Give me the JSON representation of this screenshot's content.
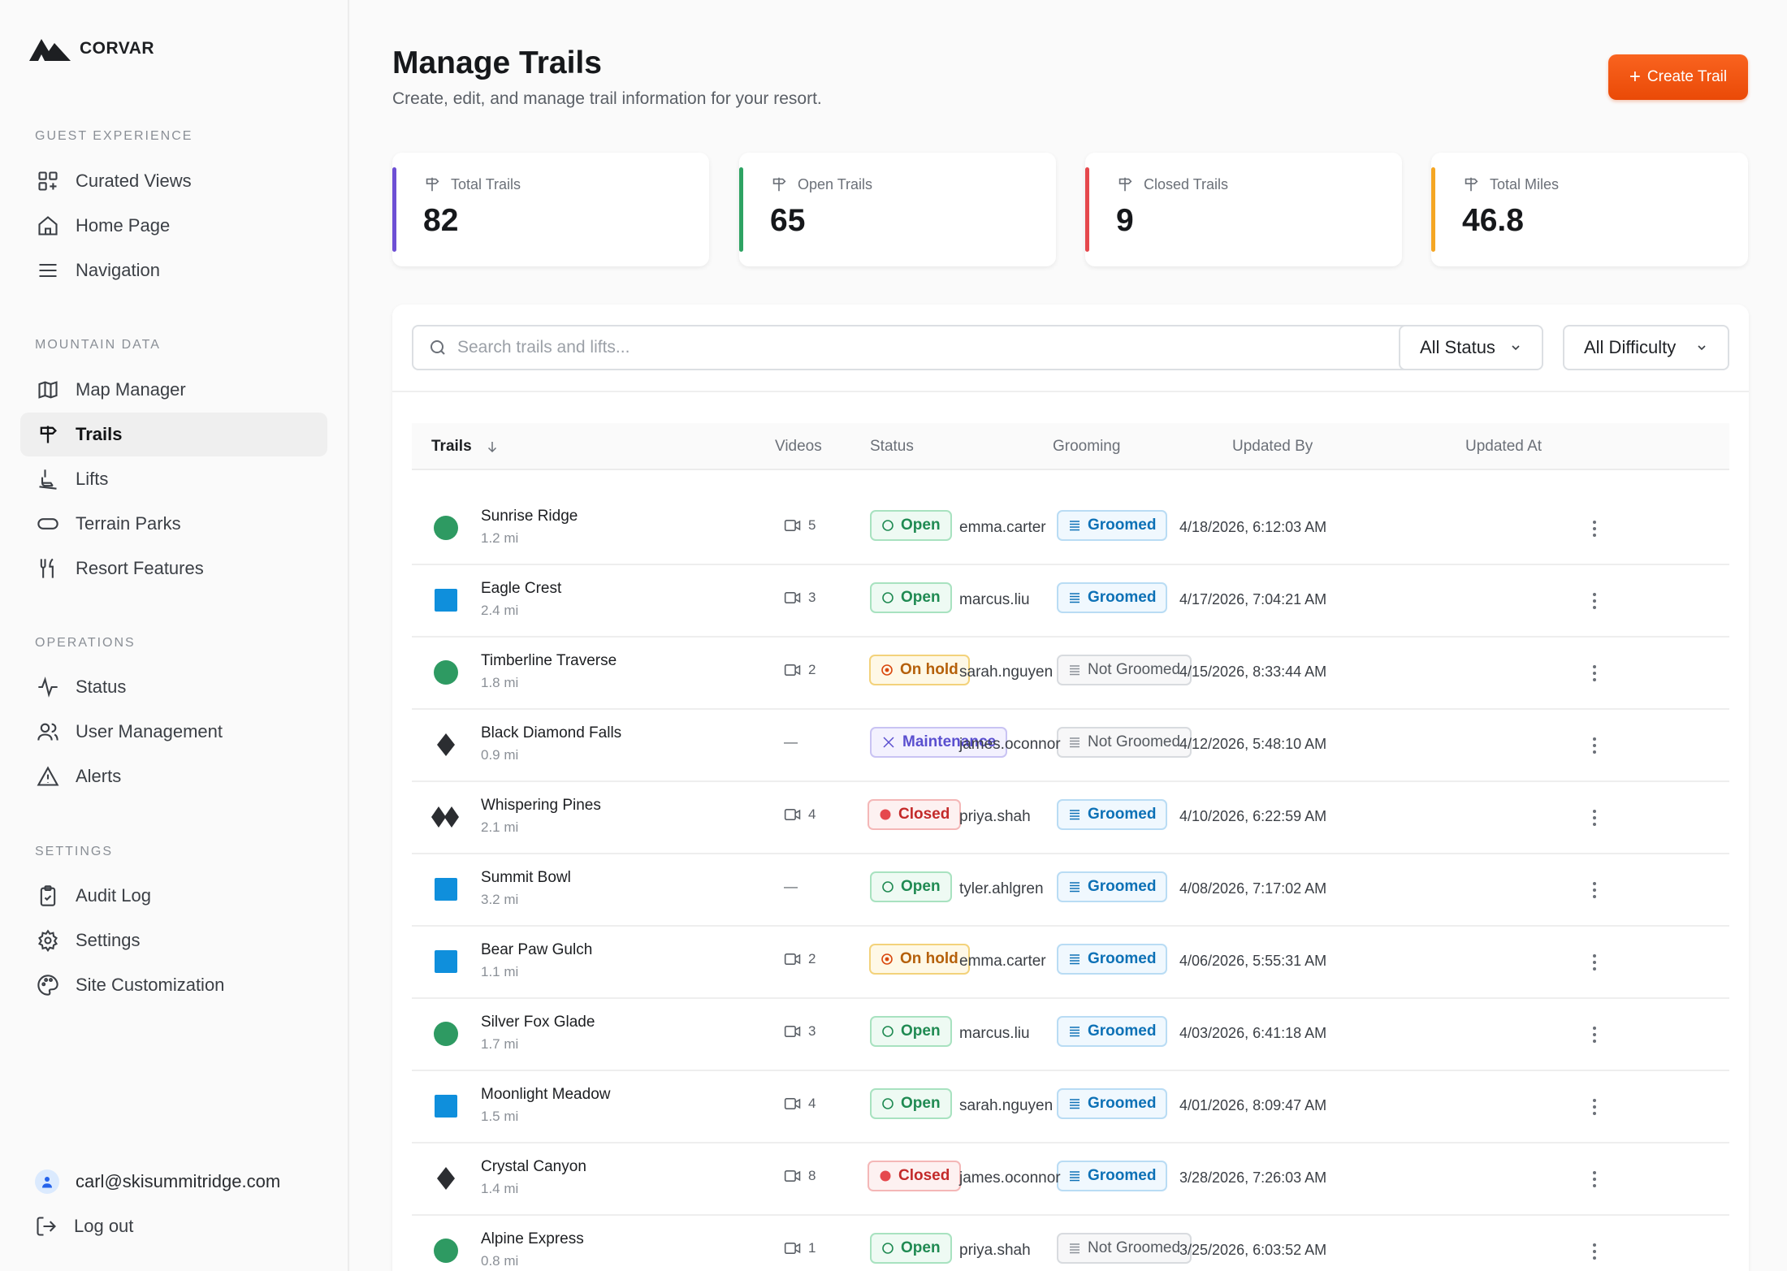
{
  "brand": {
    "name": "CORVAR"
  },
  "sidebar": {
    "sections": [
      {
        "label": "GUEST EXPERIENCE",
        "items": [
          {
            "label": "Curated Views",
            "icon": "grid-plus-icon"
          },
          {
            "label": "Home Page",
            "icon": "home-icon"
          },
          {
            "label": "Navigation",
            "icon": "menu-icon"
          }
        ]
      },
      {
        "label": "MOUNTAIN DATA",
        "items": [
          {
            "label": "Map Manager",
            "icon": "map-icon"
          },
          {
            "label": "Trails",
            "icon": "signpost-icon",
            "active": true
          },
          {
            "label": "Lifts",
            "icon": "chairlift-icon"
          },
          {
            "label": "Terrain Parks",
            "icon": "pill-icon"
          },
          {
            "label": "Resort Features",
            "icon": "utensils-icon"
          }
        ]
      },
      {
        "label": "OPERATIONS",
        "items": [
          {
            "label": "Status",
            "icon": "activity-icon"
          },
          {
            "label": "User Management",
            "icon": "users-icon"
          },
          {
            "label": "Alerts",
            "icon": "alert-triangle-icon"
          }
        ]
      },
      {
        "label": "SETTINGS",
        "items": [
          {
            "label": "Audit Log",
            "icon": "clipboard-icon"
          },
          {
            "label": "Settings",
            "icon": "gear-icon"
          },
          {
            "label": "Site Customization",
            "icon": "palette-icon"
          }
        ]
      }
    ],
    "user_email": "carl@skisummitridge.com",
    "logout_label": "Log out"
  },
  "header": {
    "title": "Manage Trails",
    "subtitle": "Create, edit, and manage trail information for your resort.",
    "create_button": "Create Trail"
  },
  "stats": [
    {
      "label": "Total Trails",
      "value": "82",
      "color": "#6d4fd4"
    },
    {
      "label": "Open Trails",
      "value": "65",
      "color": "#2ea363"
    },
    {
      "label": "Closed Trails",
      "value": "9",
      "color": "#e5484d"
    },
    {
      "label": "Total Miles",
      "value": "46.8",
      "color": "#f5a623"
    }
  ],
  "filters": {
    "search_placeholder": "Search trails and lifts...",
    "status_select": "All Status",
    "difficulty_select": "All Difficulty"
  },
  "table": {
    "columns": [
      "Trails",
      "Videos",
      "Status",
      "Grooming",
      "Updated By",
      "Updated At"
    ],
    "rows": [
      {
        "name": "Sunrise Ridge",
        "length": "1.2 mi",
        "difficulty": "green-circle",
        "videos": "5",
        "status": "Open",
        "grooming": "Groomed",
        "updated_by": "emma.carter",
        "updated_at": "4/18/2026, 6:12:03 AM"
      },
      {
        "name": "Eagle Crest",
        "length": "2.4 mi",
        "difficulty": "blue-square",
        "videos": "3",
        "status": "Open",
        "grooming": "Groomed",
        "updated_by": "marcus.liu",
        "updated_at": "4/17/2026, 7:04:21 AM"
      },
      {
        "name": "Timberline Traverse",
        "length": "1.8 mi",
        "difficulty": "green-circle",
        "videos": "2",
        "status": "On hold",
        "grooming": "Not Groomed",
        "updated_by": "sarah.nguyen",
        "updated_at": "4/15/2026, 8:33:44 AM"
      },
      {
        "name": "Black Diamond Falls",
        "length": "0.9 mi",
        "difficulty": "black-diamond",
        "videos": "—",
        "status": "Maintenance",
        "grooming": "Not Groomed",
        "updated_by": "james.oconnor",
        "updated_at": "4/12/2026, 5:48:10 AM"
      },
      {
        "name": "Whispering Pines",
        "length": "2.1 mi",
        "difficulty": "double-black-diamond",
        "videos": "4",
        "status": "Closed",
        "grooming": "Groomed",
        "updated_by": "priya.shah",
        "updated_at": "4/10/2026, 6:22:59 AM"
      },
      {
        "name": "Summit Bowl",
        "length": "3.2 mi",
        "difficulty": "blue-square",
        "videos": "—",
        "status": "Open",
        "grooming": "Groomed",
        "updated_by": "tyler.ahlgren",
        "updated_at": "4/08/2026, 7:17:02 AM"
      },
      {
        "name": "Bear Paw Gulch",
        "length": "1.1 mi",
        "difficulty": "blue-square",
        "videos": "2",
        "status": "On hold",
        "grooming": "Groomed",
        "updated_by": "emma.carter",
        "updated_at": "4/06/2026, 5:55:31 AM"
      },
      {
        "name": "Silver Fox Glade",
        "length": "1.7 mi",
        "difficulty": "green-circle",
        "videos": "3",
        "status": "Open",
        "grooming": "Groomed",
        "updated_by": "marcus.liu",
        "updated_at": "4/03/2026, 6:41:18 AM"
      },
      {
        "name": "Moonlight Meadow",
        "length": "1.5 mi",
        "difficulty": "blue-square",
        "videos": "4",
        "status": "Open",
        "grooming": "Groomed",
        "updated_by": "sarah.nguyen",
        "updated_at": "4/01/2026, 8:09:47 AM"
      },
      {
        "name": "Crystal Canyon",
        "length": "1.4 mi",
        "difficulty": "black-diamond",
        "videos": "8",
        "status": "Closed",
        "grooming": "Groomed",
        "updated_by": "james.oconnor",
        "updated_at": "3/28/2026, 7:26:03 AM"
      },
      {
        "name": "Alpine Express",
        "length": "0.8 mi",
        "difficulty": "green-circle",
        "videos": "1",
        "status": "Open",
        "grooming": "Not Groomed",
        "updated_by": "priya.shah",
        "updated_at": "3/25/2026, 6:03:52 AM"
      }
    ]
  },
  "colors": {
    "accent": "#f25a14",
    "green": "#2e9a62",
    "blue": "#0f8fdc",
    "black": "#2b2d31"
  }
}
